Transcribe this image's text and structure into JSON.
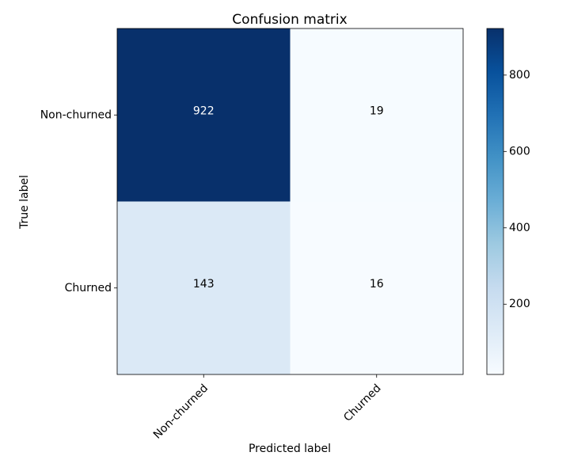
{
  "chart_data": {
    "type": "heatmap",
    "title": "Confusion matrix",
    "xlabel": "Predicted label",
    "ylabel": "True label",
    "x_categories": [
      "Non-churned",
      "Churned"
    ],
    "y_categories": [
      "Non-churned",
      "Churned"
    ],
    "matrix": [
      [
        922,
        19
      ],
      [
        143,
        16
      ]
    ],
    "colormap": "Blues",
    "colorbar": {
      "range": [
        16,
        922
      ],
      "ticks": [
        200,
        400,
        600,
        800
      ],
      "tick_labels": [
        "200",
        "400",
        "600",
        "800"
      ]
    },
    "x_tick_rotation": 45,
    "grid": false
  }
}
